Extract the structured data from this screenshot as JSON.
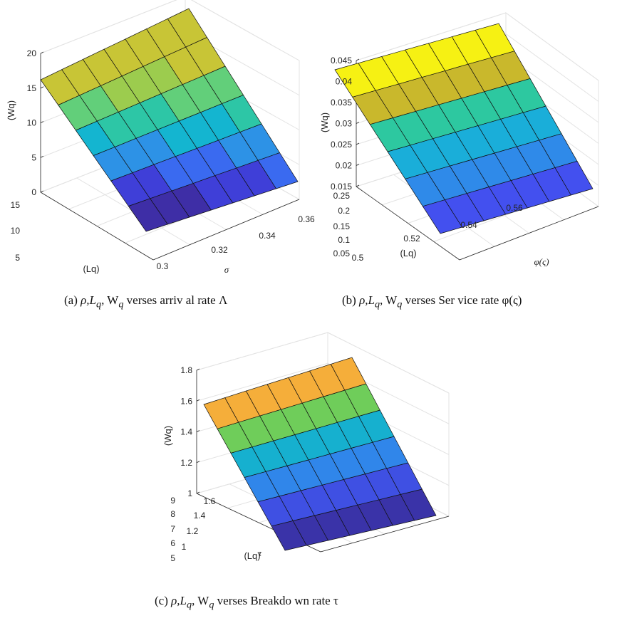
{
  "chart_data": [
    {
      "id": "a",
      "type": "surface",
      "caption": "(a) ρ,Lq, Wq verses arriv al rate Λ",
      "caption_parts": {
        "prefix": "(a) ",
        "main": "ρ,L",
        "sub": "q",
        "mid": ", W",
        "sub2": "q",
        "rest": " verses arriv al rate Λ"
      },
      "xlabel": "σ",
      "ylabel": "(Lq)",
      "zlabel": "(Wq)",
      "x_ticks": [
        "0.3",
        "0.32",
        "0.34",
        "0.36"
      ],
      "y_ticks": [
        "5",
        "10",
        "15"
      ],
      "z_ticks": [
        "0",
        "5",
        "10",
        "15",
        "20"
      ],
      "z_range": [
        0,
        20
      ],
      "grid": true,
      "colormap": "parula",
      "surface_z_corners": {
        "front_left": 0,
        "front_right": 2,
        "back_left": 16,
        "back_right": 21
      }
    },
    {
      "id": "b",
      "type": "surface",
      "caption": "(b) ρ,Lq, Wq verses Service rate φ(ς)",
      "caption_parts": {
        "prefix": "(b) ",
        "main": "ρ,L",
        "sub": "q",
        "mid": ", W",
        "sub2": "q",
        "rest": " verses Ser vice rate φ(ς)"
      },
      "xlabel": "φ(ς)",
      "ylabel": "(Lq)",
      "zlabel": "(Wq)",
      "x_ticks": [
        "0.5",
        "0.52",
        "0.54",
        "0.56"
      ],
      "y_ticks": [
        "0.05",
        "0.1",
        "0.15",
        "0.2",
        "0.25"
      ],
      "z_ticks": [
        "0.015",
        "0.02",
        "0.025",
        "0.03",
        "0.035",
        "0.04",
        "0.045"
      ],
      "z_range": [
        0.015,
        0.045
      ],
      "grid": true,
      "colormap": "parula",
      "surface_z_corners": {
        "front_left": 0.015,
        "front_right": 0.017,
        "back_left": 0.043,
        "back_right": 0.046
      }
    },
    {
      "id": "c",
      "type": "surface",
      "caption": "(c) ρ,Lq, Wq verses Breakdo wn rate τ",
      "caption_parts": {
        "prefix": "(c) ",
        "main": "ρ,L",
        "sub": "q",
        "mid": ", W",
        "sub2": "q",
        "rest": " verses Breakdo wn rate τ"
      },
      "xlabel": "τ",
      "ylabel": "(Lq)",
      "zlabel": "(Wq)",
      "x_ticks": [
        "1",
        "1.2",
        "1.4",
        "1.6"
      ],
      "y_ticks": [
        "5",
        "6",
        "7",
        "8",
        "9"
      ],
      "z_ticks": [
        "1",
        "1.2",
        "1.4",
        "1.6",
        "1.8"
      ],
      "z_range": [
        1,
        1.8
      ],
      "grid": true,
      "colormap": "parula",
      "surface_z_corners": {
        "front_left": 1.0,
        "front_right": 1.0,
        "back_left": 1.65,
        "back_right": 1.72
      }
    }
  ],
  "colors": {
    "a": [
      "#3e2ea6",
      "#3f3fd8",
      "#3a6af0",
      "#2d92e6",
      "#14b5d0",
      "#2dc6a6",
      "#62cf7a",
      "#9ccc4e",
      "#c8c536"
    ],
    "b": [
      "#4350ef",
      "#2f8ae9",
      "#1aaed9",
      "#2dc8a0",
      "#c9b82c",
      "#f6f113"
    ],
    "c": [
      "#3a33a8",
      "#3f50e3",
      "#3086ea",
      "#16b0cf",
      "#6fcd5a",
      "#f5ae3a"
    ]
  }
}
